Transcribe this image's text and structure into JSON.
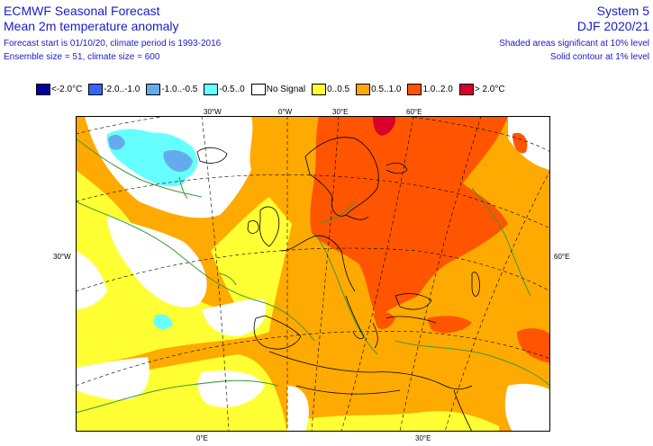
{
  "header": {
    "title_main": "ECMWF Seasonal Forecast",
    "title_sub": "Mean 2m temperature anomaly",
    "forecast_info": "Forecast start is 01/10/20, climate period is 1993-2016",
    "ensemble_info": "Ensemble size = 51, climate size = 600",
    "system": "System 5",
    "season": "DJF 2020/21",
    "sig_shaded": "Shaded areas significant at 10% level",
    "sig_contour": "Solid contour at 1% level"
  },
  "legend": [
    {
      "label": "<-2.0°C",
      "color": "#00009c"
    },
    {
      "label": "-2.0..-1.0",
      "color": "#3366ff"
    },
    {
      "label": "-1.0..-0.5",
      "color": "#66aaee"
    },
    {
      "label": "-0.5..0",
      "color": "#66ffff"
    },
    {
      "label": "No Signal",
      "color": "#ffffff"
    },
    {
      "label": "0..0.5",
      "color": "#ffff33"
    },
    {
      "label": "0.5..1.0",
      "color": "#ffaa00"
    },
    {
      "label": "1.0..2.0",
      "color": "#ff5500"
    },
    {
      "label": "> 2.0°C",
      "color": "#d9002a"
    }
  ],
  "axis_labels": {
    "top": [
      "30°W",
      "0°W",
      "30°E",
      "60°E"
    ],
    "left": "30°W",
    "right": "60°E",
    "bottom": [
      "0°E",
      "30°E"
    ]
  },
  "colors": {
    "header_text": "#1a1acc",
    "contour": "#3a9a3a",
    "coastline": "#000000",
    "graticule": "#000000"
  }
}
